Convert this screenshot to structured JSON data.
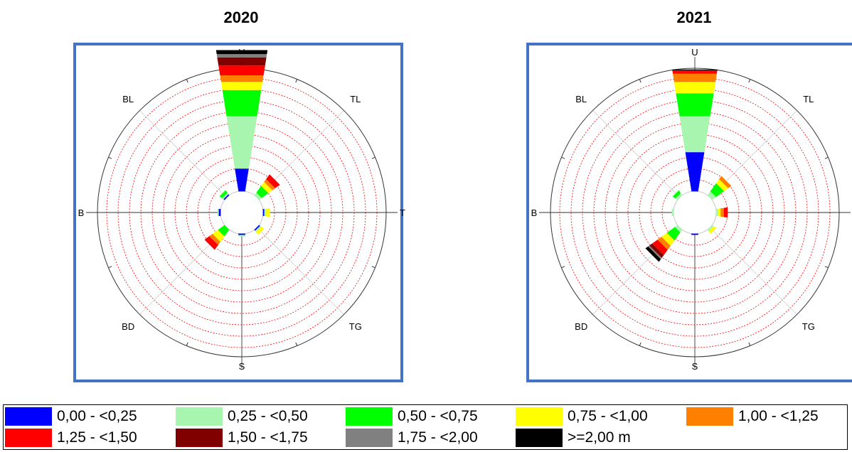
{
  "legend_title": "",
  "speed_bins": [
    {
      "label": "0,00 - <0,25",
      "color": "#0000ff"
    },
    {
      "label": "0,25 - <0,50",
      "color": "#a8f5b0"
    },
    {
      "label": "0,50 - <0,75",
      "color": "#00ff00"
    },
    {
      "label": "0,75 - <1,00",
      "color": "#ffff00"
    },
    {
      "label": "1,00 - <1,25",
      "color": "#ff8000"
    },
    {
      "label": "1,25 - <1,50",
      "color": "#ff0000"
    },
    {
      "label": "1,50 - <1,75",
      "color": "#800000"
    },
    {
      "label": "1,75 - <2,00",
      "color": "#808080"
    },
    {
      "label": ">=2,00 m",
      "color": "#000000"
    }
  ],
  "chart_data": [
    {
      "type": "polar-bar",
      "title": "2020",
      "direction_labels": [
        "U",
        "TL",
        "T",
        "TG",
        "S",
        "BD",
        "B",
        "BL"
      ],
      "rings": 10,
      "grid_color": "#ff0000",
      "frame_color": "#4472c4",
      "sectors": [
        {
          "direction": "U",
          "stacks": [
            0.07,
            0.16,
            0.08,
            0.025,
            0.02,
            0.03,
            0.025,
            0.01,
            0.012
          ]
        },
        {
          "direction": "TL",
          "stacks": [
            0.0,
            0.01,
            0.025,
            0.015,
            0.01,
            0.018,
            0.0,
            0.0,
            0.0
          ]
        },
        {
          "direction": "T",
          "stacks": [
            0.004,
            0.006,
            0.0,
            0.012,
            0.0,
            0.0,
            0.0,
            0.0,
            0.0
          ]
        },
        {
          "direction": "TG",
          "stacks": [
            0.004,
            0.005,
            0.0,
            0.01,
            0.0,
            0.0,
            0.0,
            0.0,
            0.0
          ]
        },
        {
          "direction": "S",
          "stacks": [
            0.004,
            0.005,
            0.0,
            0.0,
            0.0,
            0.0,
            0.0,
            0.0,
            0.0
          ]
        },
        {
          "direction": "BD",
          "stacks": [
            0.0,
            0.0,
            0.025,
            0.02,
            0.012,
            0.018,
            0.0,
            0.0,
            0.0
          ]
        },
        {
          "direction": "B",
          "stacks": [
            0.006,
            0.004,
            0.0,
            0.0,
            0.0,
            0.0,
            0.0,
            0.0,
            0.0
          ]
        },
        {
          "direction": "BL",
          "stacks": [
            0.004,
            0.005,
            0.01,
            0.0,
            0.0,
            0.0,
            0.0,
            0.0,
            0.0
          ]
        }
      ]
    },
    {
      "type": "polar-bar",
      "title": "2021",
      "direction_labels": [
        "U",
        "TL",
        "T",
        "TG",
        "S",
        "BD",
        "B",
        "BL"
      ],
      "rings": 10,
      "grid_color": "#ff0000",
      "frame_color": "#4472c4",
      "sectors": [
        {
          "direction": "U",
          "stacks": [
            0.12,
            0.11,
            0.07,
            0.035,
            0.025,
            0.01,
            0.0,
            0.0,
            0.003
          ]
        },
        {
          "direction": "TL",
          "stacks": [
            0.0,
            0.015,
            0.03,
            0.015,
            0.012,
            0.0,
            0.0,
            0.0,
            0.0
          ]
        },
        {
          "direction": "T",
          "stacks": [
            0.0,
            0.006,
            0.0,
            0.008,
            0.01,
            0.012,
            0.0,
            0.0,
            0.0
          ]
        },
        {
          "direction": "TG",
          "stacks": [
            0.0,
            0.006,
            0.0,
            0.01,
            0.0,
            0.0,
            0.0,
            0.0,
            0.0
          ]
        },
        {
          "direction": "S",
          "stacks": [
            0.004,
            0.0,
            0.0,
            0.0,
            0.0,
            0.0,
            0.0,
            0.0,
            0.0
          ]
        },
        {
          "direction": "BD",
          "stacks": [
            0.0,
            0.01,
            0.03,
            0.02,
            0.015,
            0.02,
            0.01,
            0.005,
            0.01
          ]
        },
        {
          "direction": "B",
          "stacks": [
            0.0,
            0.006,
            0.0,
            0.0,
            0.0,
            0.0,
            0.0,
            0.0,
            0.0
          ]
        },
        {
          "direction": "BL",
          "stacks": [
            0.0,
            0.008,
            0.01,
            0.0,
            0.0,
            0.0,
            0.0,
            0.0,
            0.0
          ]
        }
      ]
    }
  ]
}
